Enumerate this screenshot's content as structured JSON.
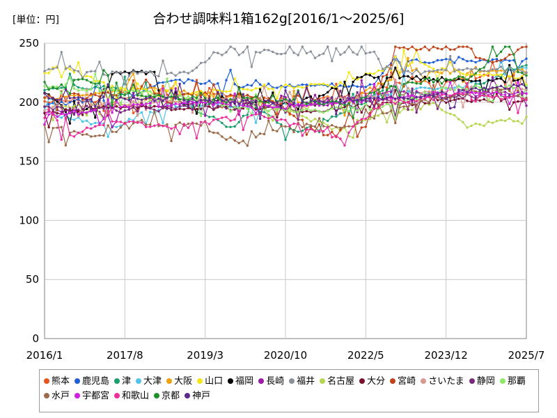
{
  "chart_data": {
    "type": "line",
    "title": "合わせ調味料1箱162g[2016/1～2025/6]",
    "unit_label": "[単位：円]",
    "xlabel": "",
    "ylabel": "",
    "ylim": [
      0,
      250
    ],
    "y_ticks": [
      "0",
      "50",
      "100",
      "150",
      "200",
      "250"
    ],
    "y_tick_values": [
      0,
      50,
      100,
      150,
      200,
      250
    ],
    "x_ticks": [
      "2016/1",
      "2017/8",
      "2019/3",
      "2020/10",
      "2022/5",
      "2023/12",
      "2025/7"
    ],
    "x_tick_months": [
      0,
      19,
      38,
      57,
      76,
      95,
      114
    ],
    "x_months_total": 114,
    "grid": true,
    "legend_position": "bottom",
    "series": [
      {
        "name": "熊本",
        "color": "#e8541c",
        "segments": [
          [
            0,
            201
          ],
          [
            12,
            202
          ],
          [
            24,
            204
          ],
          [
            40,
            207
          ],
          [
            56,
            203
          ],
          [
            72,
            205
          ],
          [
            80,
            213
          ],
          [
            96,
            219
          ],
          [
            113,
            224
          ]
        ]
      },
      {
        "name": "鹿児島",
        "color": "#1f5fd6",
        "segments": [
          [
            0,
            197
          ],
          [
            20,
            206
          ],
          [
            30,
            219
          ],
          [
            46,
            214
          ],
          [
            60,
            214
          ],
          [
            78,
            214
          ],
          [
            82,
            235
          ],
          [
            100,
            235
          ],
          [
            113,
            236
          ]
        ]
      },
      {
        "name": "津",
        "color": "#1a9e6e",
        "segments": [
          [
            0,
            212
          ],
          [
            10,
            213
          ],
          [
            18,
            211
          ],
          [
            30,
            205
          ],
          [
            44,
            179
          ],
          [
            50,
            194
          ],
          [
            60,
            175
          ],
          [
            70,
            190
          ],
          [
            80,
            210
          ],
          [
            96,
            204
          ],
          [
            113,
            231
          ]
        ]
      },
      {
        "name": "大津",
        "color": "#4fc3e8",
        "segments": [
          [
            0,
            192
          ],
          [
            16,
            179
          ],
          [
            24,
            191
          ],
          [
            36,
            199
          ],
          [
            52,
            196
          ],
          [
            68,
            199
          ],
          [
            84,
            209
          ],
          [
            100,
            214
          ],
          [
            113,
            229
          ]
        ]
      },
      {
        "name": "大阪",
        "color": "#f0a10a",
        "segments": [
          [
            0,
            203
          ],
          [
            14,
            209
          ],
          [
            28,
            211
          ],
          [
            40,
            206
          ],
          [
            56,
            201
          ],
          [
            70,
            198
          ],
          [
            86,
            227
          ],
          [
            100,
            226
          ],
          [
            113,
            225
          ]
        ]
      },
      {
        "name": "山口",
        "color": "#f2e616",
        "segments": [
          [
            0,
            225
          ],
          [
            4,
            230
          ],
          [
            8,
            223
          ],
          [
            20,
            210
          ],
          [
            36,
            208
          ],
          [
            52,
            213
          ],
          [
            70,
            215
          ],
          [
            86,
            235
          ],
          [
            100,
            224
          ],
          [
            113,
            221
          ]
        ]
      },
      {
        "name": "福岡",
        "color": "#000000",
        "segments": [
          [
            0,
            209
          ],
          [
            6,
            190
          ],
          [
            12,
            197
          ],
          [
            16,
            225
          ],
          [
            26,
            225
          ],
          [
            28,
            197
          ],
          [
            40,
            201
          ],
          [
            60,
            199
          ],
          [
            74,
            220
          ],
          [
            76,
            225
          ],
          [
            78,
            222
          ],
          [
            96,
            219
          ],
          [
            113,
            219
          ]
        ]
      },
      {
        "name": "長崎",
        "color": "#9b1aa8",
        "segments": [
          [
            0,
            193
          ],
          [
            14,
            192
          ],
          [
            30,
            199
          ],
          [
            48,
            201
          ],
          [
            64,
            197
          ],
          [
            80,
            209
          ],
          [
            96,
            206
          ],
          [
            113,
            208
          ]
        ]
      },
      {
        "name": "福井",
        "color": "#8a9099",
        "segments": [
          [
            0,
            225
          ],
          [
            4,
            231
          ],
          [
            10,
            225
          ],
          [
            28,
            224
          ],
          [
            34,
            225
          ],
          [
            40,
            241
          ],
          [
            50,
            241
          ],
          [
            52,
            246
          ],
          [
            56,
            241
          ],
          [
            78,
            241
          ],
          [
            80,
            230
          ],
          [
            84,
            225
          ],
          [
            100,
            227
          ],
          [
            113,
            227
          ]
        ]
      },
      {
        "name": "名古屋",
        "color": "#b5d651",
        "segments": [
          [
            0,
            196
          ],
          [
            18,
            198
          ],
          [
            36,
            203
          ],
          [
            54,
            198
          ],
          [
            70,
            176
          ],
          [
            80,
            190
          ],
          [
            92,
            199
          ],
          [
            100,
            180
          ],
          [
            113,
            186
          ]
        ]
      },
      {
        "name": "大分",
        "color": "#7a1030",
        "segments": [
          [
            0,
            191
          ],
          [
            18,
            196
          ],
          [
            34,
            195
          ],
          [
            50,
            195
          ],
          [
            64,
            193
          ],
          [
            80,
            198
          ],
          [
            98,
            202
          ],
          [
            113,
            201
          ]
        ]
      },
      {
        "name": "宮崎",
        "color": "#c0441a",
        "segments": [
          [
            0,
            205
          ],
          [
            16,
            207
          ],
          [
            34,
            207
          ],
          [
            52,
            205
          ],
          [
            66,
            173
          ],
          [
            76,
            181
          ],
          [
            84,
            246
          ],
          [
            100,
            246
          ],
          [
            106,
            232
          ],
          [
            113,
            246
          ]
        ]
      },
      {
        "name": "さいたま",
        "color": "#d89a8e",
        "segments": [
          [
            0,
            195
          ],
          [
            20,
            199
          ],
          [
            40,
            203
          ],
          [
            60,
            201
          ],
          [
            80,
            205
          ],
          [
            96,
            209
          ],
          [
            113,
            210
          ]
        ]
      },
      {
        "name": "静岡",
        "color": "#7a2a7a",
        "segments": [
          [
            0,
            195
          ],
          [
            20,
            194
          ],
          [
            40,
            196
          ],
          [
            60,
            198
          ],
          [
            80,
            202
          ],
          [
            100,
            205
          ],
          [
            113,
            207
          ]
        ]
      },
      {
        "name": "那覇",
        "color": "#8ee86a",
        "segments": [
          [
            0,
            213
          ],
          [
            14,
            210
          ],
          [
            30,
            206
          ],
          [
            48,
            195
          ],
          [
            66,
            193
          ],
          [
            80,
            196
          ],
          [
            96,
            212
          ],
          [
            113,
            214
          ]
        ]
      },
      {
        "name": "水戸",
        "color": "#9c6b4a",
        "segments": [
          [
            0,
            181
          ],
          [
            12,
            170
          ],
          [
            22,
            182
          ],
          [
            36,
            180
          ],
          [
            46,
            166
          ],
          [
            56,
            181
          ],
          [
            72,
            180
          ],
          [
            84,
            196
          ],
          [
            96,
            205
          ],
          [
            108,
            212
          ],
          [
            113,
            204
          ]
        ]
      },
      {
        "name": "宇都宮",
        "color": "#d01ee0",
        "segments": [
          [
            0,
            189
          ],
          [
            10,
            192
          ],
          [
            24,
            198
          ],
          [
            40,
            199
          ],
          [
            58,
            196
          ],
          [
            76,
            202
          ],
          [
            96,
            208
          ],
          [
            113,
            208
          ]
        ]
      },
      {
        "name": "和歌山",
        "color": "#ea2f9b",
        "segments": [
          [
            0,
            200
          ],
          [
            6,
            171
          ],
          [
            16,
            185
          ],
          [
            30,
            178
          ],
          [
            50,
            190
          ],
          [
            70,
            170
          ],
          [
            80,
            199
          ],
          [
            100,
            207
          ],
          [
            113,
            203
          ]
        ]
      },
      {
        "name": "京都",
        "color": "#1e8f2a",
        "segments": [
          [
            0,
            208
          ],
          [
            8,
            221
          ],
          [
            20,
            206
          ],
          [
            38,
            203
          ],
          [
            56,
            201
          ],
          [
            72,
            199
          ],
          [
            84,
            216
          ],
          [
            100,
            221
          ],
          [
            110,
            246
          ],
          [
            113,
            224
          ]
        ]
      },
      {
        "name": "神戸",
        "color": "#5c2a8a",
        "segments": [
          [
            0,
            204
          ],
          [
            16,
            203
          ],
          [
            32,
            202
          ],
          [
            52,
            200
          ],
          [
            70,
            201
          ],
          [
            86,
            205
          ],
          [
            104,
            211
          ],
          [
            113,
            214
          ]
        ]
      }
    ]
  }
}
